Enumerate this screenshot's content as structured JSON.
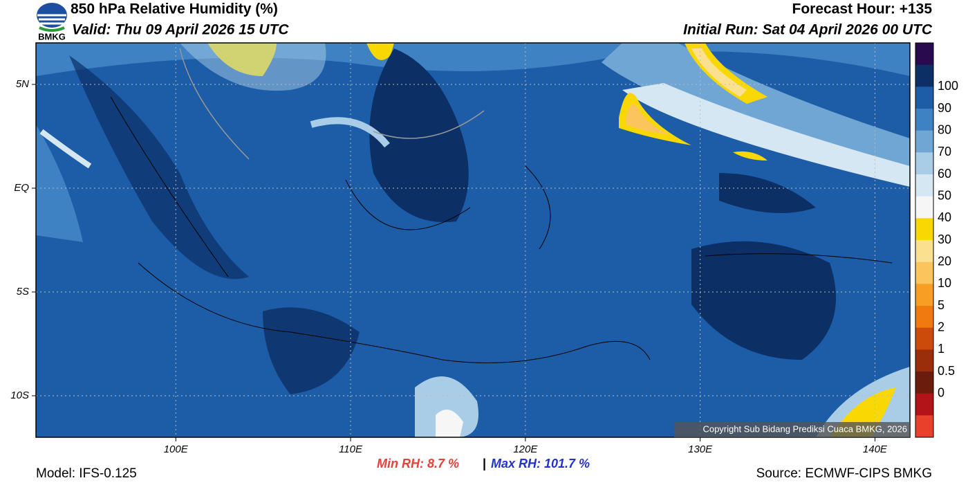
{
  "header": {
    "title": "850 hPa Relative Humidity (%)",
    "valid": "Valid: Thu 09 April 2026 15 UTC",
    "forecast_hour": "Forecast Hour: +135",
    "initial_run": "Initial Run: Sat 04 April 2026 00 UTC",
    "logo_text": "BMKG"
  },
  "map": {
    "lonlim": [
      92,
      142
    ],
    "latlim": [
      7,
      -12
    ],
    "lon_ticks": [
      {
        "value": 100,
        "label": "100E"
      },
      {
        "value": 110,
        "label": "110E"
      },
      {
        "value": 120,
        "label": "120E"
      },
      {
        "value": 130,
        "label": "130E"
      },
      {
        "value": 140,
        "label": "140E"
      }
    ],
    "lat_ticks": [
      {
        "value": 5,
        "label": "5N"
      },
      {
        "value": 0,
        "label": "EQ"
      },
      {
        "value": -5,
        "label": "5S"
      },
      {
        "value": -10,
        "label": "10S"
      }
    ],
    "copyright": "Copyright Sub Bidang Prediksi Cuaca BMKG, 2026"
  },
  "colorbar": {
    "colors": [
      "#2a0a4e",
      "#0c2f66",
      "#1d5ca6",
      "#3f82c3",
      "#6fa6d4",
      "#a9cde6",
      "#d5e7f2",
      "#f6f6f6",
      "#f8d800",
      "#fbe08f",
      "#fcc45c",
      "#f99e25",
      "#f07a10",
      "#cc4a0a",
      "#9a2e0a",
      "#6b1c0c",
      "#b3141a",
      "#e8402b"
    ],
    "labels": [
      "100",
      "90",
      "80",
      "70",
      "60",
      "50",
      "40",
      "30",
      "20",
      "10",
      "5",
      "2",
      "1",
      "0.5",
      "0"
    ]
  },
  "footer": {
    "model": "Model: IFS-0.125",
    "min_rh": "Min RH:   8.7 %",
    "separator": "|",
    "max_rh": "Max RH: 101.7 %",
    "source": "Source: ECMWF-CIPS BMKG"
  }
}
